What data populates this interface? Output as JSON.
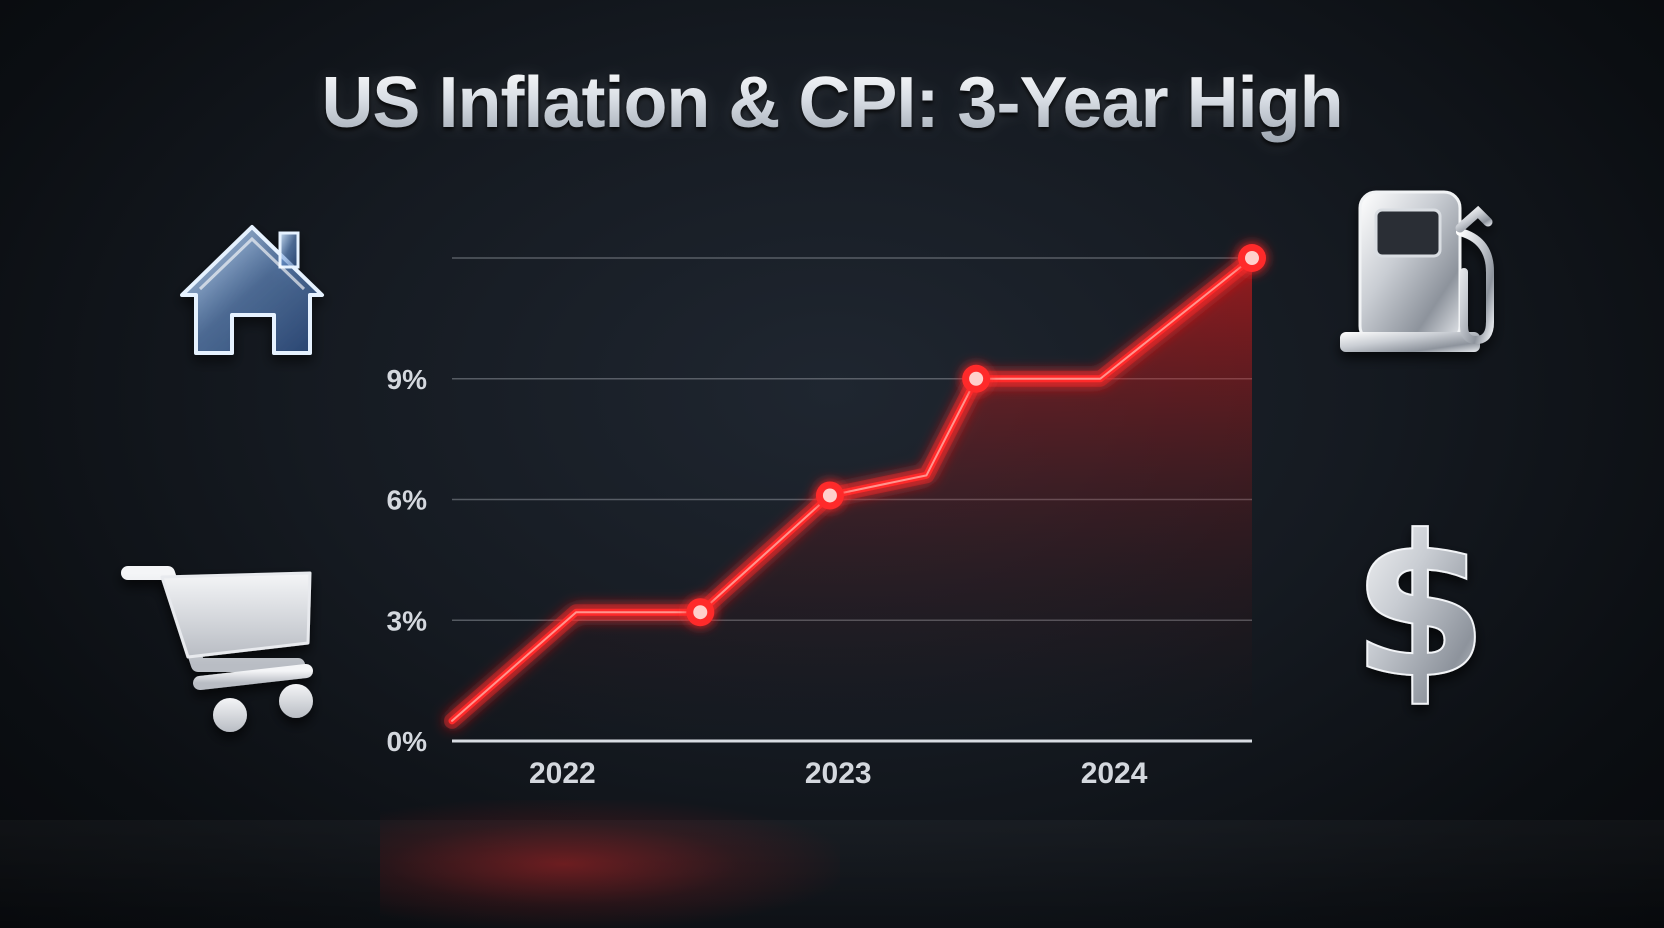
{
  "title": "US Inflation & CPI: 3-Year High",
  "colors": {
    "line": "#ff2a2a",
    "grid": "#8a8f98",
    "axis": "#d8dce2",
    "tick_text": "#d4d8de"
  },
  "icons": {
    "top_left": "house-icon",
    "bottom_left": "shopping-cart-icon",
    "top_right": "gas-pump-icon",
    "bottom_right": "dollar-sign-icon"
  },
  "chart_data": {
    "type": "line",
    "title": "US Inflation & CPI: 3-Year High",
    "xlabel": "",
    "ylabel": "",
    "x_ticks": [
      "2022",
      "2023",
      "2024"
    ],
    "y_ticks": [
      "0%",
      "3%",
      "6%",
      "9%"
    ],
    "ylim": [
      0,
      12
    ],
    "xlim": [
      2021.6,
      2024.5
    ],
    "grid": true,
    "legend": "none",
    "series": [
      {
        "points": [
          {
            "x": 2021.6,
            "y": 0.5,
            "marker": false
          },
          {
            "x": 2022.05,
            "y": 3.2,
            "marker": false
          },
          {
            "x": 2022.5,
            "y": 3.2,
            "marker": true
          },
          {
            "x": 2022.97,
            "y": 6.1,
            "marker": true
          },
          {
            "x": 2023.32,
            "y": 6.6,
            "marker": false
          },
          {
            "x": 2023.5,
            "y": 9.0,
            "marker": true
          },
          {
            "x": 2023.95,
            "y": 9.0,
            "marker": false
          },
          {
            "x": 2024.5,
            "y": 12.0,
            "marker": true
          }
        ]
      }
    ]
  }
}
